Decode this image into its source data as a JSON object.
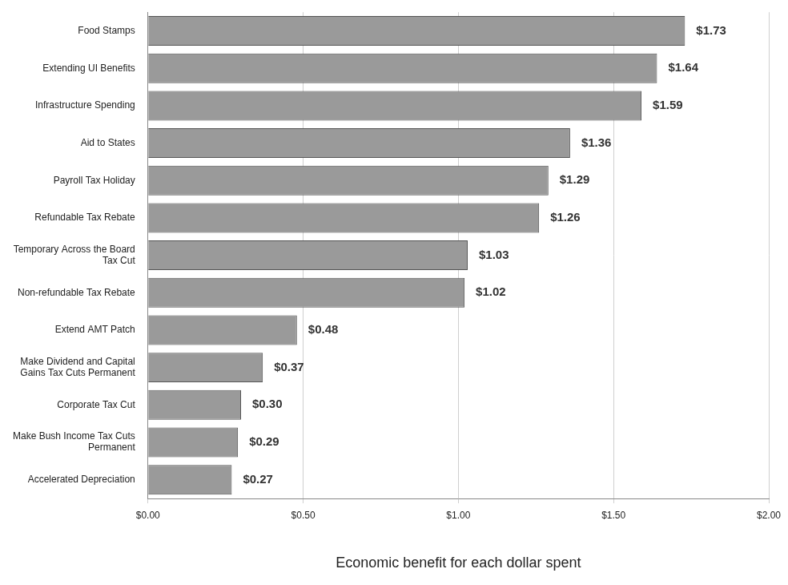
{
  "chart_data": {
    "type": "bar",
    "orientation": "horizontal",
    "x_label": "Economic benefit for each dollar spent",
    "categories": [
      "Food Stamps",
      "Extending UI Benefits",
      "Infrastructure Spending",
      "Aid to States",
      "Payroll Tax Holiday",
      "Refundable Tax Rebate",
      "Temporary Across the Board Tax Cut",
      "Non-refundable Tax Rebate",
      "Extend AMT Patch",
      "Make Dividend and Capital Gains Tax Cuts Permanent",
      "Corporate Tax Cut",
      "Make Bush Income Tax Cuts Permanent",
      "Accelerated Depreciation"
    ],
    "values": [
      1.73,
      1.64,
      1.59,
      1.36,
      1.29,
      1.26,
      1.03,
      1.02,
      0.48,
      0.37,
      0.3,
      0.29,
      0.27
    ],
    "value_labels": [
      "$1.73",
      "$1.64",
      "$1.59",
      "$1.36",
      "$1.29",
      "$1.26",
      "$1.03",
      "$1.02",
      "$0.48",
      "$0.37",
      "$0.30",
      "$0.29",
      "$0.27"
    ],
    "data_labels": true,
    "color": "#9a9a9a",
    "xlim": [
      0,
      2
    ],
    "xticks": [
      {
        "value": 0,
        "label": "$0.00"
      },
      {
        "value": 0.5,
        "label": "$0.50"
      },
      {
        "value": 1,
        "label": "$1.00"
      },
      {
        "value": 1.5,
        "label": "$1.50"
      },
      {
        "value": 2,
        "label": "$2.00"
      }
    ],
    "grid": true
  }
}
